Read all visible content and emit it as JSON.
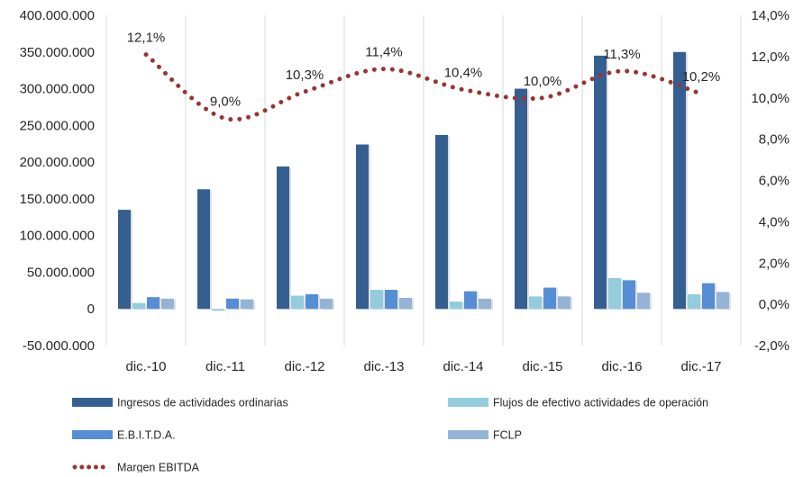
{
  "chart_data": {
    "type": "bar",
    "categories": [
      "dic.-10",
      "dic.-11",
      "dic.-12",
      "dic.-13",
      "dic.-14",
      "dic.-15",
      "dic.-16",
      "dic.-17"
    ],
    "series": [
      {
        "name": "Ingresos de actividades ordinarias",
        "kind": "bar",
        "axis": "left",
        "color": "#355F91",
        "values": [
          135000000,
          163000000,
          194000000,
          224000000,
          237000000,
          300000000,
          345000000,
          350000000
        ]
      },
      {
        "name": "Flujos de efectivo actividades de operación",
        "kind": "bar",
        "axis": "left",
        "color": "#93CDDD",
        "values": [
          8000000,
          -2000000,
          18000000,
          26000000,
          10000000,
          17000000,
          42000000,
          20000000
        ]
      },
      {
        "name": "E.B.I.T.D.A.",
        "kind": "bar",
        "axis": "left",
        "color": "#558ED5",
        "values": [
          16000000,
          14000000,
          20000000,
          26000000,
          24000000,
          29000000,
          39000000,
          35000000
        ]
      },
      {
        "name": "FCLP",
        "kind": "bar",
        "axis": "left",
        "color": "#95B3D7",
        "values": [
          14000000,
          13000000,
          14000000,
          15000000,
          14000000,
          17000000,
          22000000,
          23000000
        ]
      },
      {
        "name": "Margen EBITDA",
        "kind": "line",
        "style": "dotted",
        "axis": "right",
        "color": "#953735",
        "values": [
          12.1,
          9.0,
          10.3,
          11.4,
          10.4,
          10.0,
          11.3,
          10.2
        ],
        "labels": [
          "12,1%",
          "9,0%",
          "10,3%",
          "11,4%",
          "10,4%",
          "10,0%",
          "11,3%",
          "10,2%"
        ]
      }
    ],
    "y_left": {
      "ylim": [
        -50000000,
        400000000
      ],
      "ticks": [
        400000000,
        350000000,
        300000000,
        250000000,
        200000000,
        150000000,
        100000000,
        50000000,
        0,
        -50000000
      ],
      "tick_labels": [
        "400.000.000",
        "350.000.000",
        "300.000.000",
        "250.000.000",
        "200.000.000",
        "150.000.000",
        "100.000.000",
        "50.000.000",
        "0",
        "-50.000.000"
      ]
    },
    "y_right": {
      "ylim": [
        -2,
        14
      ],
      "ticks": [
        14,
        12,
        10,
        8,
        6,
        4,
        2,
        0,
        -2
      ],
      "tick_labels": [
        "14,0%",
        "12,0%",
        "10,0%",
        "8,0%",
        "6,0%",
        "4,0%",
        "2,0%",
        "0,0%",
        "-2,0%"
      ]
    },
    "grid": "vertical lines between categories",
    "legend": "bottom",
    "title": "",
    "xlabel": "",
    "ylabel": ""
  }
}
